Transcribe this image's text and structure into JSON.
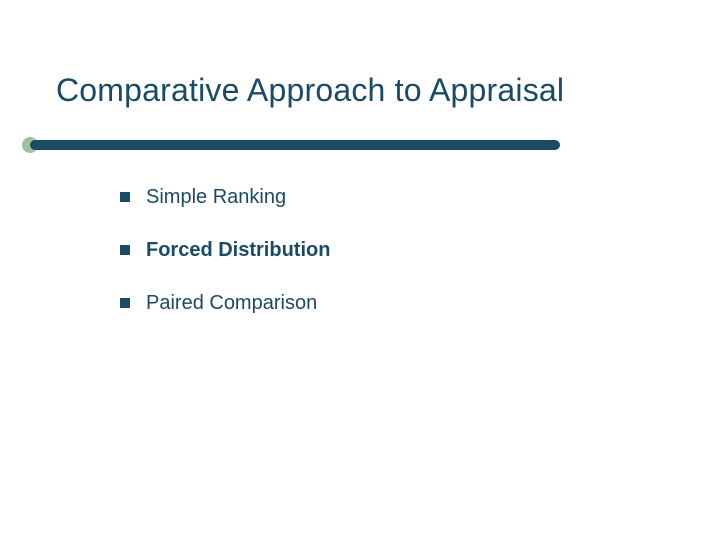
{
  "slide": {
    "title": "Comparative Approach to Appraisal",
    "title_color": "#1a4a66",
    "title_fontsize": 32,
    "background_color": "#ffffff",
    "accent": {
      "dot_color": "#9fc198",
      "bar_color": "#1a4a66"
    },
    "bullets": [
      {
        "text": "Simple Ranking",
        "bold": false
      },
      {
        "text": "Forced Distribution",
        "bold": true
      },
      {
        "text": "Paired Comparison",
        "bold": false
      }
    ],
    "bullet_marker_color": "#1a4a66",
    "bullet_text_color": "#1a4a66",
    "bullet_fontsize": 20
  }
}
